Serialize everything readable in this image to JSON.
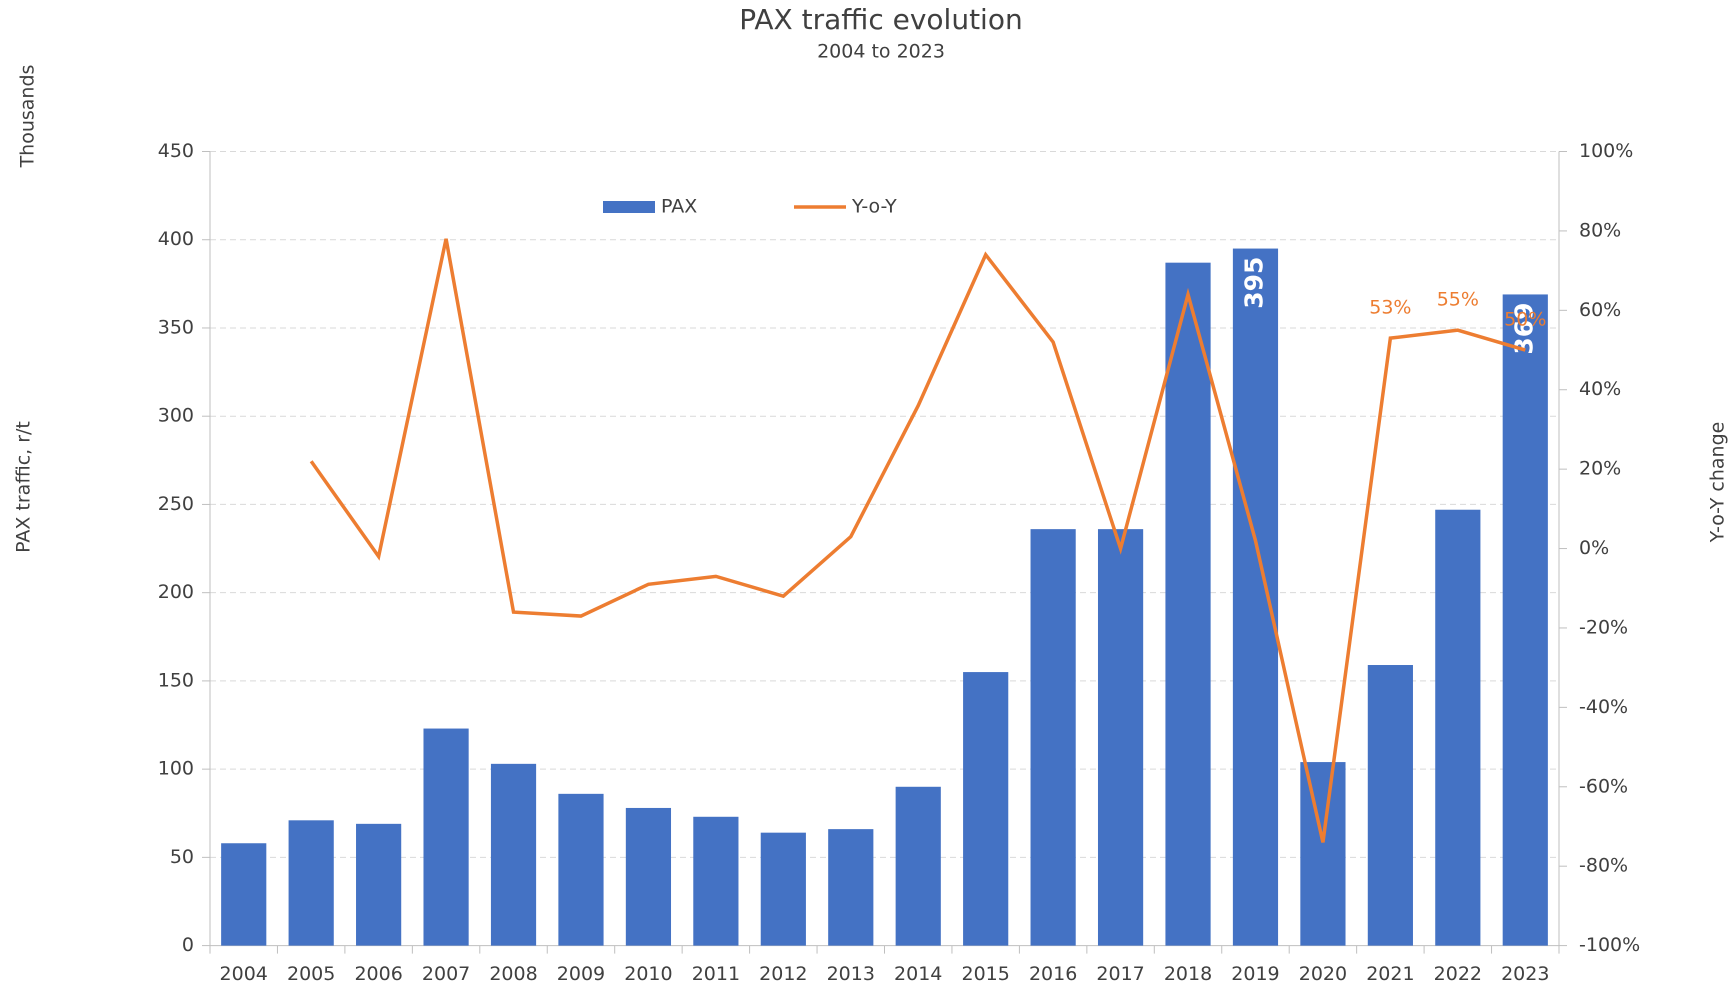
{
  "chart_data": {
    "type": "bar-line",
    "title": "PAX traffic evolution",
    "subtitle": "2004 to 2023",
    "unit_label": "Thousands",
    "y_label": "PAX traffic, r/t",
    "y2_label": "Y-o-Y change",
    "categories": [
      "2004",
      "2005",
      "2006",
      "2007",
      "2008",
      "2009",
      "2010",
      "2011",
      "2012",
      "2013",
      "2014",
      "2015",
      "2016",
      "2017",
      "2018",
      "2019",
      "2020",
      "2021",
      "2022",
      "2023"
    ],
    "series": [
      {
        "name": "PAX",
        "type": "bar",
        "color": "#4472c4",
        "values": [
          58,
          71,
          69,
          123,
          103,
          86,
          78,
          73,
          64,
          66,
          90,
          155,
          236,
          236,
          387,
          395,
          104,
          159,
          247,
          369
        ],
        "value_labels": [
          null,
          null,
          null,
          null,
          null,
          null,
          null,
          null,
          null,
          null,
          null,
          null,
          null,
          null,
          null,
          "395",
          null,
          null,
          null,
          "369"
        ]
      },
      {
        "name": "Y-o-Y",
        "type": "line",
        "color": "#ed7d31",
        "axis": "y2",
        "values": [
          null,
          22,
          -2,
          78,
          -16,
          -17,
          -9,
          -7,
          -12,
          3,
          36,
          74,
          52,
          0,
          64,
          2,
          -74,
          53,
          55,
          50
        ],
        "value_labels": [
          null,
          null,
          null,
          null,
          null,
          null,
          null,
          null,
          null,
          null,
          null,
          null,
          null,
          null,
          null,
          null,
          null,
          "53%",
          "55%",
          "50%"
        ]
      }
    ],
    "ylim": [
      0,
      450
    ],
    "yticks": [
      0,
      50,
      100,
      150,
      200,
      250,
      300,
      350,
      400,
      450
    ],
    "y2lim": [
      -100,
      100
    ],
    "y2ticks": [
      {
        "value": -100,
        "label": "-100%"
      },
      {
        "value": -80,
        "label": "-80%"
      },
      {
        "value": -60,
        "label": "-60%"
      },
      {
        "value": -40,
        "label": "-40%"
      },
      {
        "value": -20,
        "label": "-20%"
      },
      {
        "value": 0,
        "label": "0%"
      },
      {
        "value": 20,
        "label": "20%"
      },
      {
        "value": 40,
        "label": "40%"
      },
      {
        "value": 60,
        "label": "60%"
      },
      {
        "value": 80,
        "label": "80%"
      },
      {
        "value": 100,
        "label": "100%"
      }
    ],
    "grid": true,
    "legend": "top"
  }
}
